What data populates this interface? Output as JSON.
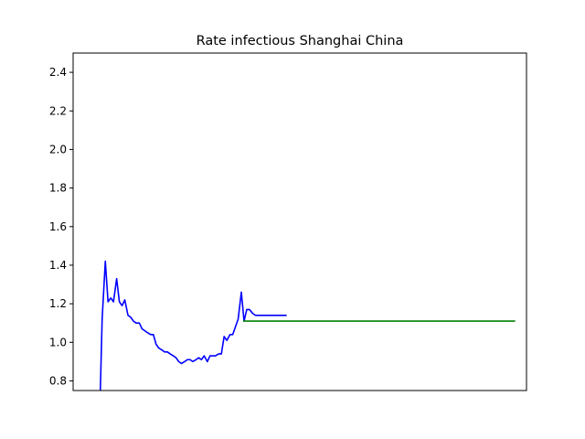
{
  "chart_data": {
    "type": "line",
    "title": "Rate infectious Shanghai China",
    "xlabel": "",
    "ylabel": "",
    "ylim": [
      0.75,
      2.5
    ],
    "xlim": [
      0,
      100
    ],
    "yticks": [
      "0.8",
      "1.0",
      "1.2",
      "1.4",
      "1.6",
      "1.8",
      "2.0",
      "2.2",
      "2.4"
    ],
    "grid": false,
    "series": [
      {
        "color": "#0000ff",
        "x": [
          6,
          6.4,
          7.1,
          7.7,
          8.3,
          8.9,
          9.6,
          10.2,
          10.8,
          11.4,
          12.1,
          12.7,
          13.3,
          13.9,
          14.6,
          15.2,
          15.8,
          16.4,
          17.1,
          17.7,
          18.3,
          18.9,
          19.6,
          20.2,
          20.8,
          21.4,
          22.1,
          22.7,
          23.3,
          23.9,
          24.6,
          25.2,
          25.8,
          26.4,
          27.1,
          27.7,
          28.3,
          28.9,
          29.6,
          30.2,
          30.8,
          31.4,
          32.1,
          32.7,
          33.3,
          33.9,
          34.6,
          35.2,
          35.8,
          36.4,
          37.1,
          37.7,
          38.3,
          38.9,
          39.6,
          40.2,
          40.8,
          41.4,
          42.1,
          42.7,
          43.3,
          43.9,
          44.6,
          45.2,
          45.8,
          46.4,
          47.1,
          37.7
        ],
        "y": [
          0.75,
          1.12,
          1.42,
          1.21,
          1.23,
          1.21,
          1.33,
          1.21,
          1.19,
          1.22,
          1.14,
          1.13,
          1.11,
          1.1,
          1.1,
          1.07,
          1.06,
          1.05,
          1.04,
          1.04,
          0.99,
          0.97,
          0.96,
          0.95,
          0.95,
          0.94,
          0.93,
          0.92,
          0.9,
          0.89,
          0.9,
          0.91,
          0.91,
          0.9,
          0.91,
          0.92,
          0.91,
          0.93,
          0.9,
          0.93,
          0.93,
          0.93,
          0.94,
          0.94,
          1.03,
          1.01,
          1.04,
          1.04,
          1.08,
          1.12,
          1.26,
          1.11,
          1.17,
          1.17,
          1.15,
          1.14,
          1.14,
          1.14,
          1.14,
          1.14,
          1.14,
          1.14,
          1.14,
          1.14,
          1.14,
          1.14,
          1.14,
          1.14
        ]
      },
      {
        "color": "#008000",
        "x": [
          37.5,
          97.5
        ],
        "y": [
          1.11,
          1.11
        ]
      }
    ]
  }
}
